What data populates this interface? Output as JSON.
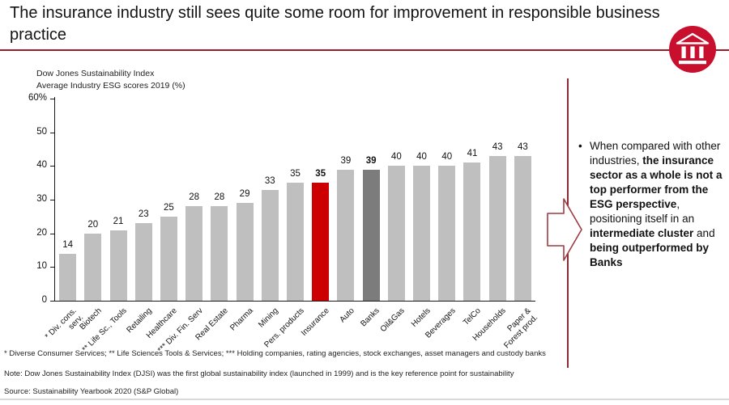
{
  "slide": {
    "title": "The insurance industry still sees quite some room for improvement in responsible business practice",
    "footnote": "* Diverse Consumer Services; ** Life Sciences Tools & Services; *** Holding companies, rating agencies, stock exchanges, asset managers and custody banks",
    "note": "Note: Dow Jones Sustainability Index (DJSI) was the first global sustainability index (launched in 1999) and is the key reference point for sustainability",
    "source": "Source: Sustainability Yearbook 2020 (S&P Global)"
  },
  "colors": {
    "gray": "#BFBFBF",
    "dark_gray": "#7C7C7C",
    "red": "#CC0000",
    "accent_rule": "#9C1B26",
    "logo_red": "#C8102E"
  },
  "chart_data": {
    "type": "bar",
    "title": "Dow Jones Sustainability Index",
    "subtitle": "Average Industry ESG scores 2019 (%)",
    "ylim": [
      0,
      60
    ],
    "yticks": [
      0,
      10,
      20,
      30,
      40,
      50,
      60
    ],
    "ytick_unit_on_top": "%",
    "grid": false,
    "legend": "none",
    "bars": [
      {
        "label": "* Div. cons.\nserv.",
        "value": 14,
        "color": "gray"
      },
      {
        "label": "Biotech",
        "value": 20,
        "color": "gray"
      },
      {
        "label": "** Life Sc., Tools",
        "value": 21,
        "color": "gray"
      },
      {
        "label": "Retailing",
        "value": 23,
        "color": "gray"
      },
      {
        "label": "Healthcare",
        "value": 25,
        "color": "gray"
      },
      {
        "label": "*** Div. Fin. Serv",
        "value": 28,
        "color": "gray"
      },
      {
        "label": "Real Estate",
        "value": 28,
        "color": "gray"
      },
      {
        "label": "Pharma",
        "value": 29,
        "color": "gray"
      },
      {
        "label": "Mining",
        "value": 33,
        "color": "gray"
      },
      {
        "label": "Pers. products",
        "value": 35,
        "color": "gray"
      },
      {
        "label": "Insurance",
        "value": 35,
        "color": "red",
        "value_bold": true
      },
      {
        "label": "Auto",
        "value": 39,
        "color": "gray"
      },
      {
        "label": "Banks",
        "value": 39,
        "color": "dark_gray",
        "value_bold": true
      },
      {
        "label": "Oil&Gas",
        "value": 40,
        "color": "gray"
      },
      {
        "label": "Hotels",
        "value": 40,
        "color": "gray"
      },
      {
        "label": "Beverages",
        "value": 40,
        "color": "gray"
      },
      {
        "label": "TelCo",
        "value": 41,
        "color": "gray"
      },
      {
        "label": "Households",
        "value": 43,
        "color": "gray"
      },
      {
        "label": "Paper &\nForest prod.",
        "value": 43,
        "color": "gray"
      }
    ]
  },
  "panel": {
    "bullet": "•",
    "segments": [
      {
        "text": "When compared with other industries, ",
        "bold": false
      },
      {
        "text": "the insurance sector as a whole is not a top performer from the ESG perspective",
        "bold": true
      },
      {
        "text": ", positioning itself in an ",
        "bold": false
      },
      {
        "text": "intermediate cluster",
        "bold": true
      },
      {
        "text": " and ",
        "bold": false
      },
      {
        "text": "being outperformed by Banks",
        "bold": true
      }
    ]
  },
  "icons": {
    "logo": "bank-building-icon",
    "arrow": "right-block-arrow-icon"
  }
}
